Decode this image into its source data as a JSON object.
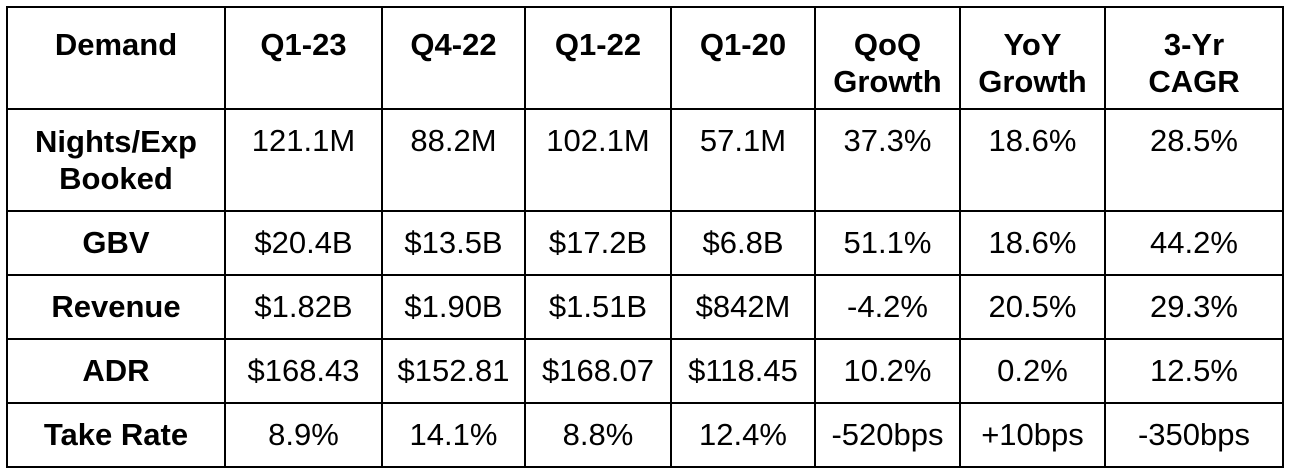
{
  "table": {
    "headers": [
      "Demand",
      "Q1-23",
      "Q4-22",
      "Q1-22",
      "Q1-20",
      [
        "QoQ",
        "Growth"
      ],
      [
        "YoY",
        "Growth"
      ],
      [
        "3-Yr",
        "CAGR"
      ]
    ],
    "rows": [
      {
        "label": [
          "Nights/Exp",
          "Booked"
        ],
        "cells": [
          "121.1M",
          "88.2M",
          "102.1M",
          "57.1M",
          "37.3%",
          "18.6%",
          "28.5%"
        ]
      },
      {
        "label": "GBV",
        "cells": [
          "$20.4B",
          "$13.5B",
          "$17.2B",
          "$6.8B",
          "51.1%",
          "18.6%",
          "44.2%"
        ]
      },
      {
        "label": "Revenue",
        "cells": [
          "$1.82B",
          "$1.90B",
          "$1.51B",
          "$842M",
          "-4.2%",
          "20.5%",
          "29.3%"
        ]
      },
      {
        "label": "ADR",
        "cells": [
          "$168.43",
          "$152.81",
          "$168.07",
          "$118.45",
          "10.2%",
          "0.2%",
          "12.5%"
        ]
      },
      {
        "label": "Take Rate",
        "cells": [
          "8.9%",
          "14.1%",
          "8.8%",
          "12.4%",
          "-520bps",
          "+10bps",
          "-350bps"
        ]
      }
    ]
  }
}
